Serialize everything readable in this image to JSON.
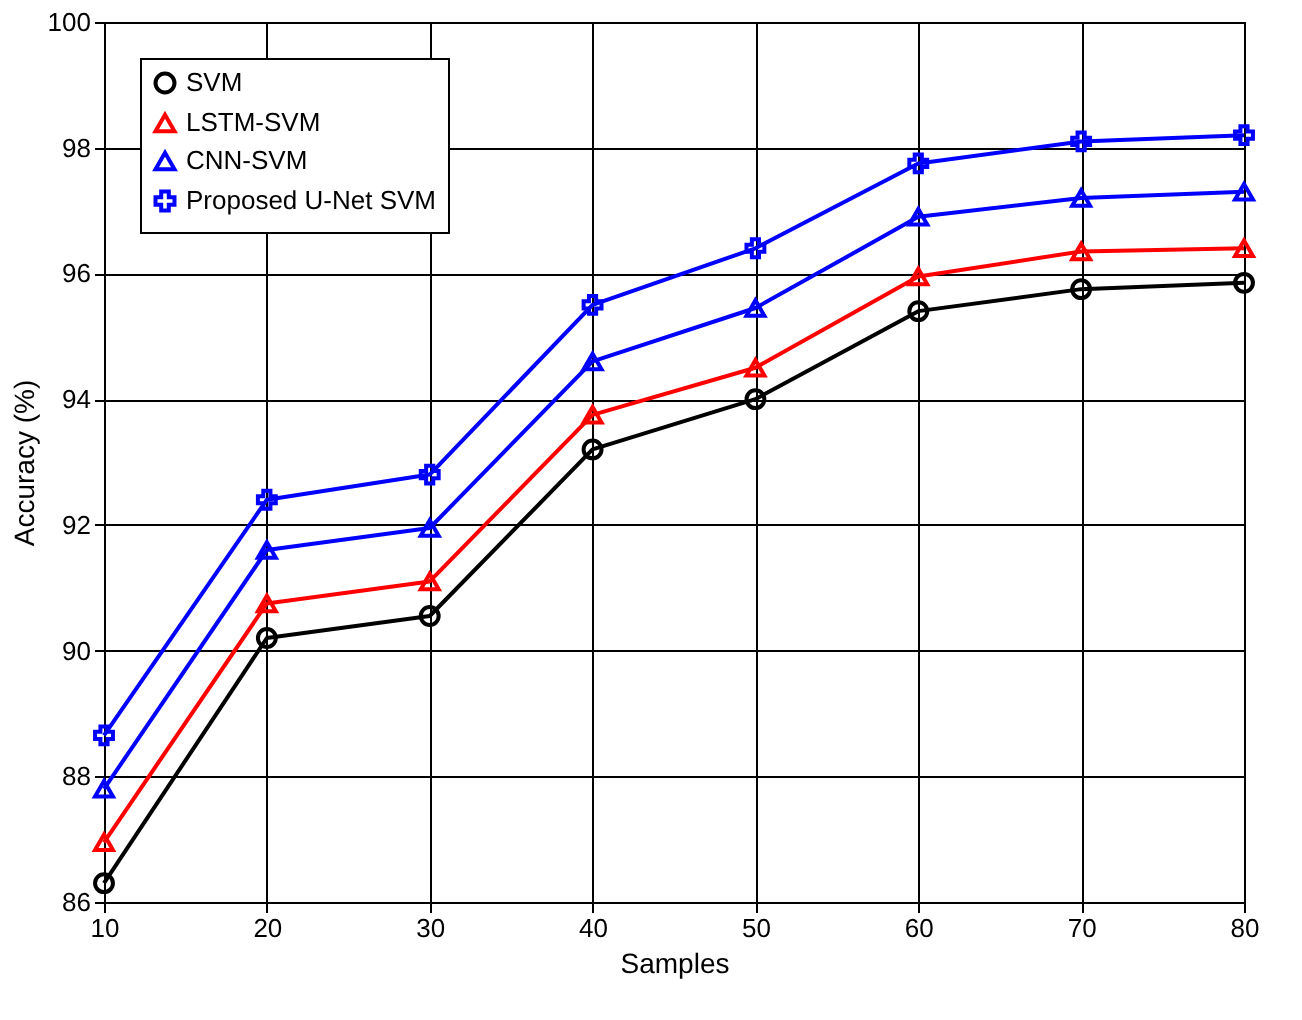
{
  "chart_data": {
    "type": "line",
    "xlabel": "Samples",
    "ylabel": "Accuracy (%)",
    "x": [
      10,
      20,
      30,
      40,
      50,
      60,
      70,
      80
    ],
    "xlim": [
      10,
      80
    ],
    "xticks": [
      10,
      20,
      30,
      40,
      50,
      60,
      70,
      80
    ],
    "ylim": [
      86,
      100
    ],
    "yticks": [
      86,
      88,
      90,
      92,
      94,
      96,
      98,
      100
    ],
    "grid": true,
    "legend": "top left",
    "line_style": "solid",
    "series": [
      {
        "name": "SVM",
        "color": "#000000",
        "marker": "circle",
        "values": [
          86.3,
          90.2,
          90.55,
          93.2,
          94.0,
          95.4,
          95.75,
          95.85
        ]
      },
      {
        "name": "LSTM-SVM",
        "color": "#ff0000",
        "marker": "triangle",
        "values": [
          86.95,
          90.75,
          91.1,
          93.75,
          94.5,
          95.95,
          96.35,
          96.4
        ]
      },
      {
        "name": "CNN-SVM",
        "color": "#0000ff",
        "marker": "triangle",
        "values": [
          87.8,
          91.6,
          91.95,
          94.6,
          95.45,
          96.9,
          97.2,
          97.3
        ]
      },
      {
        "name": "Proposed U-Net SVM",
        "color": "#0000ff",
        "marker": "cross",
        "values": [
          88.65,
          92.4,
          92.8,
          95.5,
          96.4,
          97.75,
          98.1,
          98.2
        ]
      }
    ]
  }
}
